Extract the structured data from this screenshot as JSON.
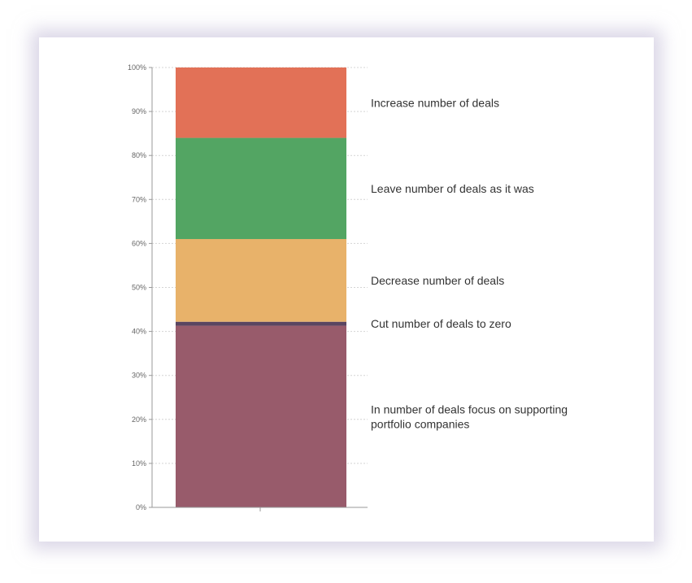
{
  "chart_data": {
    "type": "bar",
    "stacked": true,
    "y_tick_labels": [
      "0%",
      "10%",
      "20%",
      "30%",
      "40%",
      "50%",
      "60%",
      "70%",
      "80%",
      "90%",
      "100%"
    ],
    "ylim": [
      0,
      100
    ],
    "grid": true,
    "segments": [
      {
        "label": "In number of deals focus on supporting portfolio companies",
        "label_lines": [
          "In number of deals focus on supporting",
          "portfolio companies"
        ],
        "value": 41.3,
        "color": "#985b6b"
      },
      {
        "label": "Cut number of deals to zero",
        "label_lines": [
          "Cut number of deals to zero"
        ],
        "value": 0.9,
        "color": "#5a4561"
      },
      {
        "label": "Decrease number of deals",
        "label_lines": [
          "Decrease number of deals"
        ],
        "value": 18.8,
        "color": "#e8b26a"
      },
      {
        "label": "Leave number of deals as it was",
        "label_lines": [
          "Leave number of deals as it was"
        ],
        "value": 23.0,
        "color": "#53a563"
      },
      {
        "label": "Increase number of deals",
        "label_lines": [
          "Increase number of deals"
        ],
        "value": 16.0,
        "color": "#e27157"
      }
    ]
  }
}
